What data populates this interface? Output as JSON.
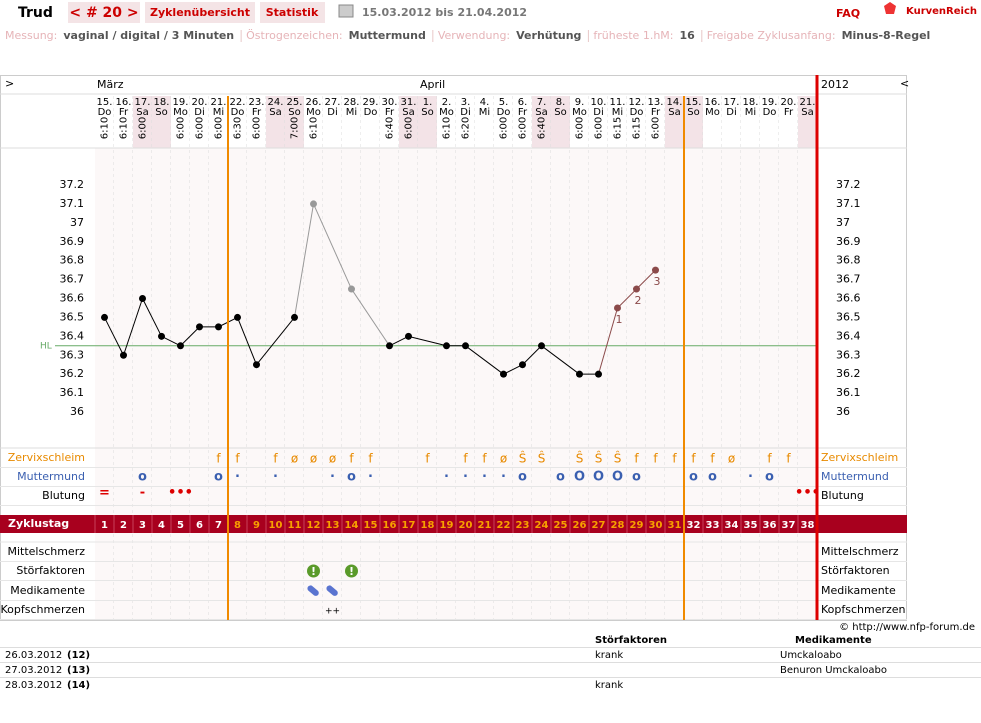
{
  "header": {
    "title": "Trud",
    "cycle": "< # 20 >",
    "tabs": [
      "Zyklenübersicht",
      "Statistik"
    ],
    "date_range": "15.03.2012 bis 21.04.2012",
    "faq": "FAQ",
    "brand": "KurvenReich"
  },
  "settings": [
    {
      "label": "Messung:",
      "value": "vaginal / digital / 3 Minuten"
    },
    {
      "label": "Östrogenzeichen:",
      "value": "Muttermund"
    },
    {
      "label": "Verwendung:",
      "value": "Verhütung"
    },
    {
      "label": "früheste 1.hM:",
      "value": "16"
    },
    {
      "label": "Freigabe Zyklusanfang:",
      "value": "Minus-8-Regel"
    }
  ],
  "nav": {
    "left": ">",
    "right": "<",
    "year": "2012"
  },
  "months": [
    {
      "col": 0,
      "label": "März"
    },
    {
      "col": 17,
      "label": "April"
    }
  ],
  "days": [
    "15.",
    "16.",
    "17.",
    "18.",
    "19.",
    "20.",
    "21.",
    "22.",
    "23.",
    "24.",
    "25.",
    "26.",
    "27.",
    "28.",
    "29.",
    "30.",
    "31.",
    "1.",
    "2.",
    "3.",
    "4.",
    "5.",
    "6.",
    "7.",
    "8.",
    "9.",
    "10.",
    "11.",
    "12.",
    "13.",
    "14.",
    "15.",
    "16.",
    "17.",
    "18.",
    "19.",
    "20.",
    "21."
  ],
  "weekdays": [
    "Do",
    "Fr",
    "Sa",
    "So",
    "Mo",
    "Di",
    "Mi",
    "Do",
    "Fr",
    "Sa",
    "So",
    "Mo",
    "Di",
    "Mi",
    "Do",
    "Fr",
    "Sa",
    "So",
    "Mo",
    "Di",
    "Mi",
    "Do",
    "Fr",
    "Sa",
    "So",
    "Mo",
    "Di",
    "Mi",
    "Do",
    "Fr",
    "Sa",
    "So",
    "Mo",
    "Di",
    "Mi",
    "Do",
    "Fr",
    "Sa"
  ],
  "times": [
    "6:10",
    "6:10",
    "6:00",
    null,
    "6:00",
    "6:00",
    "6:00",
    "6:30",
    "6:00",
    null,
    "7:00",
    "6:10",
    null,
    null,
    null,
    "6:40",
    "6:00",
    null,
    "6:10",
    "6:20",
    null,
    "6:00",
    "6:00",
    "6:40",
    null,
    "6:00",
    "6:00",
    "6:15",
    "6:15",
    "6:00",
    null,
    null,
    null,
    null,
    null,
    null,
    null,
    null
  ],
  "temps": {
    "values": [
      36.5,
      36.3,
      36.6,
      36.4,
      36.35,
      36.45,
      36.45,
      36.5,
      36.25,
      null,
      36.5,
      37.1,
      null,
      36.65,
      null,
      36.35,
      36.4,
      null,
      36.35,
      36.35,
      null,
      36.2,
      36.25,
      36.35,
      null,
      36.2,
      36.2,
      36.55,
      36.65,
      36.75,
      null,
      null,
      null,
      null,
      null,
      null,
      null,
      null
    ],
    "point_colors": [
      "#000",
      "#000",
      "#000",
      "#000",
      "#000",
      "#000",
      "#000",
      "#000",
      "#000",
      null,
      "#000",
      "#999",
      null,
      "#999",
      null,
      "#000",
      "#000",
      null,
      "#000",
      "#000",
      null,
      "#000",
      "#000",
      "#000",
      null,
      "#000",
      "#000",
      "#8b4a4a",
      "#8b4a4a",
      "#8b4a4a",
      null,
      null,
      null,
      null,
      null,
      null,
      null,
      null
    ],
    "line_color": "#000",
    "ylim": [
      36,
      37.2
    ],
    "yticks": [
      36,
      36.1,
      36.2,
      36.3,
      36.4,
      36.5,
      36.6,
      36.7,
      36.8,
      36.9,
      37,
      37.1,
      37.2
    ],
    "hl": {
      "value": 36.35,
      "label": "HL"
    },
    "hm_labels": [
      null,
      null,
      null,
      null,
      null,
      null,
      null,
      null,
      null,
      null,
      null,
      null,
      null,
      null,
      null,
      null,
      null,
      null,
      null,
      null,
      null,
      null,
      null,
      null,
      null,
      null,
      null,
      1,
      2,
      3,
      null,
      null,
      null,
      null,
      null,
      null,
      null,
      null
    ]
  },
  "rows": {
    "zervix": {
      "label": "Zervixschleim",
      "values": [
        null,
        null,
        null,
        null,
        null,
        null,
        "f",
        "f",
        null,
        "f",
        "ø",
        "ø",
        "ø",
        "f",
        "f",
        null,
        null,
        "f",
        null,
        "f",
        "f",
        "ø",
        "Ŝ",
        "Ŝ",
        null,
        "Ŝ",
        "Ŝ",
        "Ŝ",
        "f",
        "f",
        "f",
        "f",
        "f",
        "ø",
        null,
        "f",
        "f",
        null
      ]
    },
    "muttermund": {
      "label": "Muttermund",
      "values": [
        null,
        null,
        "o",
        null,
        null,
        null,
        "o",
        "·",
        null,
        "·",
        null,
        null,
        "·",
        "o",
        "·",
        null,
        null,
        null,
        "·",
        "·",
        "·",
        "·",
        "o",
        null,
        "o",
        "O",
        "O",
        "O",
        "o",
        null,
        null,
        "o",
        "o",
        null,
        "·",
        "o",
        null,
        null
      ]
    },
    "blutung": {
      "label": "Blutung",
      "values": [
        "=",
        null,
        "-",
        null,
        "•••",
        null,
        null,
        null,
        null,
        null,
        null,
        null,
        null,
        null,
        null,
        null,
        null,
        null,
        null,
        null,
        null,
        null,
        null,
        null,
        null,
        null,
        null,
        null,
        null,
        null,
        null,
        null,
        null,
        null,
        null,
        null,
        null,
        "•••"
      ]
    },
    "zyklustag": {
      "label": "Zyklustag",
      "values": [
        1,
        2,
        3,
        4,
        5,
        6,
        7,
        8,
        9,
        10,
        11,
        12,
        13,
        14,
        15,
        16,
        17,
        18,
        19,
        20,
        21,
        22,
        23,
        24,
        25,
        26,
        27,
        28,
        29,
        30,
        31,
        32,
        33,
        34,
        35,
        36,
        37,
        38
      ]
    },
    "mittelschmerz": {
      "label": "Mittelschmerz"
    },
    "stoerfaktoren": {
      "label": "Störfaktoren",
      "values": [
        null,
        null,
        null,
        null,
        null,
        null,
        null,
        null,
        null,
        null,
        null,
        "!",
        null,
        "!",
        null,
        null,
        null,
        null,
        null,
        null,
        null,
        null,
        null,
        null,
        null,
        null,
        null,
        null,
        null,
        null,
        null,
        null,
        null,
        null,
        null,
        null,
        null,
        null
      ]
    },
    "medikamente": {
      "label": "Medikamente",
      "values": [
        null,
        null,
        null,
        null,
        null,
        null,
        null,
        null,
        null,
        null,
        null,
        true,
        true,
        null,
        null,
        null,
        null,
        null,
        null,
        null,
        null,
        null,
        null,
        null,
        null,
        null,
        null,
        null,
        null,
        null,
        null,
        null,
        null,
        null,
        null,
        null,
        null,
        null
      ]
    },
    "kopfschmerzen": {
      "label": "Kopfschmerzen",
      "values": [
        null,
        null,
        null,
        null,
        null,
        null,
        null,
        null,
        null,
        null,
        null,
        null,
        "++",
        null,
        null,
        null,
        null,
        null,
        null,
        null,
        null,
        null,
        null,
        null,
        null,
        null,
        null,
        null,
        null,
        null,
        null,
        null,
        null,
        null,
        null,
        null,
        null,
        null
      ]
    }
  },
  "footer": {
    "copyright": "© http://www.nfp-forum.de",
    "columns": [
      "Störfaktoren",
      "Medikamente"
    ],
    "rows": [
      [
        "26.03.2012",
        "(12)",
        "krank",
        "Umckaloabo"
      ],
      [
        "27.03.2012",
        "(13)",
        null,
        "Benuron Umckaloabo"
      ],
      [
        "28.03.2012",
        "(14)",
        "krank",
        null
      ]
    ]
  }
}
